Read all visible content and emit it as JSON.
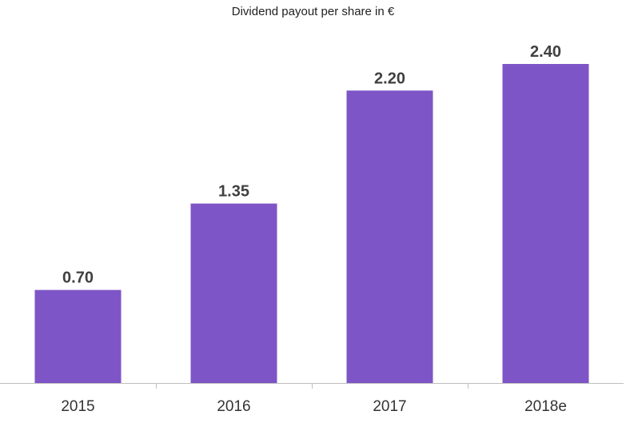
{
  "chart_data": {
    "type": "bar",
    "title": "Dividend payout per share in €",
    "categories": [
      "2015",
      "2016",
      "2017",
      "2018e"
    ],
    "values": [
      0.7,
      1.35,
      2.2,
      2.4
    ],
    "value_labels": [
      "0.70",
      "1.35",
      "2.20",
      "2.40"
    ],
    "xlabel": "",
    "ylabel": "",
    "ylim": [
      0,
      2.4
    ],
    "grid": false,
    "bar_color": "#7E55C6",
    "axis_color": "#BFBFBF",
    "label_color": "#404040"
  }
}
